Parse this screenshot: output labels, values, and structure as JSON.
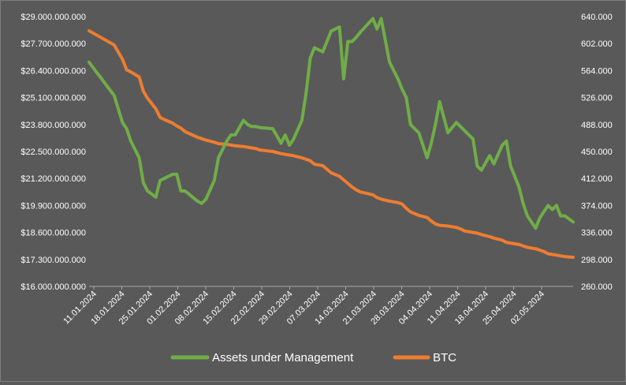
{
  "chart_data": {
    "type": "line",
    "title": "",
    "colors": {
      "background": "#595959",
      "axis": "#a6a6a6",
      "aum": "#70ad47",
      "btc": "#ed7d31",
      "text": "#ffffff"
    },
    "x_tick_labels": [
      "11.01.2024",
      "18.01.2024",
      "25.01.2024",
      "01.02.2024",
      "08.02.2024",
      "15.02.2024",
      "22.02.2024",
      "29.02.2024",
      "07.03.2024",
      "14.03.2024",
      "21.03.2024",
      "28.03.2024",
      "04.04.2024",
      "11.04.2024",
      "18.04.2024",
      "25.04.2024",
      "02.05.2024"
    ],
    "x_range": [
      0,
      116
    ],
    "y_left": {
      "lim": [
        16000000000,
        29000000000
      ],
      "ticks": [
        16000000000,
        17300000000,
        18600000000,
        19900000000,
        21200000000,
        22500000000,
        23800000000,
        25100000000,
        26400000000,
        27700000000,
        29000000000
      ],
      "tick_labels": [
        "$16.000.000.000",
        "$17.300.000.000",
        "$18.600.000.000",
        "$19.900.000.000",
        "$21.200.000.000",
        "$22.500.000.000",
        "$23.800.000.000",
        "$25.100.000.000",
        "$26.400.000.000",
        "$27.700.000.000",
        "$29.000.000.000"
      ]
    },
    "y_right": {
      "lim": [
        260000,
        640000
      ],
      "ticks": [
        260000,
        298000,
        336000,
        374000,
        412000,
        450000,
        488000,
        526000,
        564000,
        602000,
        640000
      ],
      "tick_labels": [
        "260.000",
        "298.000",
        "336.000",
        "374.000",
        "412.000",
        "450.000",
        "488.000",
        "526.000",
        "564.000",
        "602.000",
        "640.000"
      ]
    },
    "series": [
      {
        "name": "Assets under Management",
        "axis": "left",
        "color": "#70ad47",
        "x": [
          0,
          6,
          8,
          9,
          10,
          12,
          13,
          14,
          16,
          17,
          18,
          20,
          21,
          22,
          23,
          26,
          27,
          28,
          30,
          31,
          33,
          34,
          35,
          37,
          38,
          39,
          40,
          41,
          44,
          46,
          47,
          48,
          49,
          51,
          52,
          53,
          54,
          56,
          57,
          58,
          60,
          61,
          62,
          63,
          64,
          65,
          68,
          69,
          70,
          72,
          74,
          75,
          76,
          77,
          79,
          81,
          82,
          83,
          84,
          86,
          88,
          89,
          90,
          91,
          92,
          93,
          94,
          96,
          97,
          99,
          100,
          101,
          103,
          104,
          105,
          107,
          108,
          109,
          110,
          111,
          112,
          113,
          114,
          116
        ],
        "y": [
          26800000000,
          25200000000,
          23900000000,
          23600000000,
          23000000000,
          22200000000,
          21000000000,
          20600000000,
          20300000000,
          21100000000,
          21200000000,
          21400000000,
          21400000000,
          20600000000,
          20600000000,
          20100000000,
          20000000000,
          20200000000,
          21100000000,
          22200000000,
          23000000000,
          23300000000,
          23300000000,
          24000000000,
          23800000000,
          23700000000,
          23700000000,
          23650000000,
          23600000000,
          22900000000,
          23300000000,
          22800000000,
          23100000000,
          24000000000,
          25300000000,
          27000000000,
          27500000000,
          27300000000,
          27800000000,
          28300000000,
          28500000000,
          26000000000,
          27800000000,
          27800000000,
          28000000000,
          28250000000,
          28900000000,
          28400000000,
          28900000000,
          26800000000,
          26000000000,
          25500000000,
          25100000000,
          23800000000,
          23400000000,
          22200000000,
          22900000000,
          23800000000,
          24900000000,
          23400000000,
          23900000000,
          23700000000,
          23500000000,
          23300000000,
          23100000000,
          21800000000,
          21600000000,
          22300000000,
          21900000000,
          22800000000,
          23000000000,
          21800000000,
          20800000000,
          20000000000,
          19400000000,
          18800000000,
          19300000000,
          19600000000,
          19900000000,
          19700000000,
          19900000000,
          19400000000,
          19400000000,
          19100000000
        ]
      },
      {
        "name": "BTC",
        "axis": "right",
        "color": "#ed7d31",
        "x": [
          0,
          6,
          8,
          9,
          10,
          12,
          13,
          14,
          16,
          17,
          18,
          20,
          21,
          22,
          23,
          26,
          27,
          28,
          30,
          31,
          33,
          34,
          35,
          37,
          38,
          39,
          40,
          41,
          44,
          46,
          47,
          48,
          49,
          51,
          52,
          53,
          54,
          56,
          57,
          58,
          60,
          61,
          62,
          63,
          64,
          65,
          68,
          69,
          70,
          72,
          74,
          75,
          76,
          77,
          79,
          81,
          82,
          83,
          84,
          86,
          88,
          89,
          90,
          91,
          92,
          93,
          94,
          96,
          97,
          99,
          100,
          101,
          103,
          104,
          105,
          107,
          108,
          109,
          110,
          111,
          112,
          113,
          114,
          116
        ],
        "y": [
          620000,
          600000,
          580000,
          565000,
          562000,
          555000,
          535000,
          525000,
          510000,
          498000,
          495000,
          490000,
          486000,
          483000,
          478000,
          470000,
          468000,
          466000,
          463000,
          461000,
          460000,
          459000,
          458000,
          457000,
          456000,
          455000,
          454000,
          452000,
          450000,
          447000,
          446000,
          445000,
          444000,
          441000,
          439000,
          437000,
          432000,
          430000,
          425000,
          420000,
          415000,
          410000,
          405000,
          400000,
          396000,
          393000,
          389000,
          385000,
          383000,
          380000,
          378000,
          376000,
          370000,
          365000,
          360000,
          357000,
          352000,
          348000,
          346000,
          345000,
          343000,
          341000,
          338000,
          337000,
          336000,
          335000,
          333000,
          330000,
          328000,
          325000,
          322000,
          321000,
          319000,
          317000,
          315000,
          313000,
          311000,
          309000,
          306000,
          305000,
          304000,
          303000,
          302000,
          301000
        ]
      }
    ],
    "legend_position": "bottom"
  }
}
